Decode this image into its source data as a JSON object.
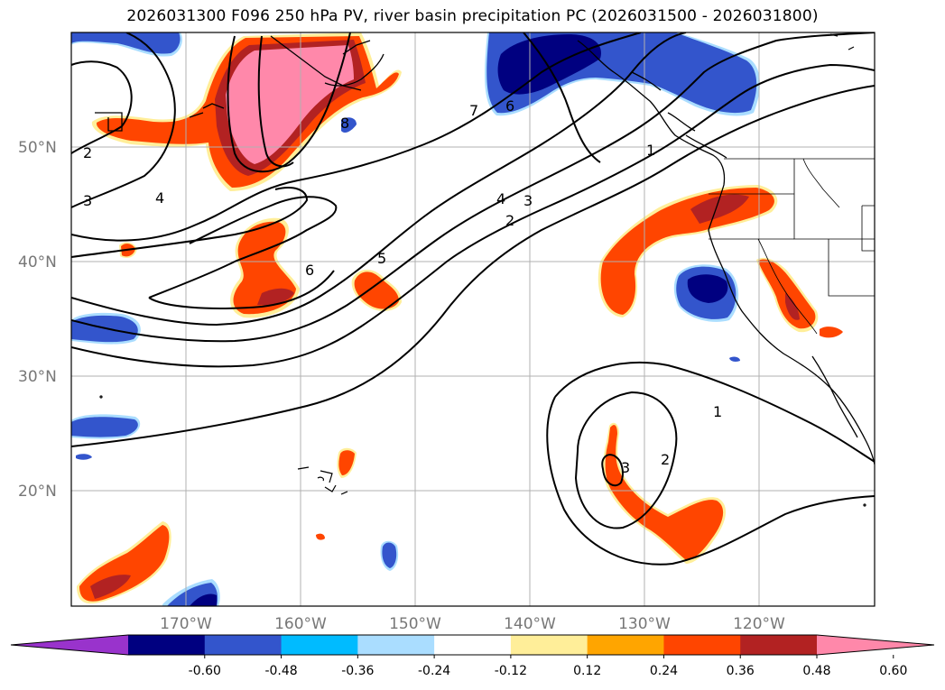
{
  "title": "2026031300 F096 250 hPa PV, river basin precipitation PC (2026031500 - 2026031800)",
  "lat_labels": [
    "50°N",
    "40°N",
    "30°N",
    "20°N"
  ],
  "lon_labels": [
    "170°W",
    "160°W",
    "150°W",
    "140°W",
    "130°W",
    "120°W"
  ],
  "pv_contour_labels": [
    "2",
    "3",
    "4",
    "8",
    "7",
    "6",
    "6",
    "5",
    "4",
    "3",
    "2",
    "1",
    "1",
    "2",
    "3"
  ],
  "colorbar": {
    "tick_labels": [
      "-0.60",
      "-0.48",
      "-0.36",
      "-0.24",
      "-0.12",
      "0.12",
      "0.24",
      "0.36",
      "0.48",
      "0.60"
    ],
    "colors": [
      "#9933cc",
      "#000080",
      "#3355cc",
      "#00bbff",
      "#aaddff",
      "#ffffff",
      "#ffee99",
      "#ffa500",
      "#ff4500",
      "#b22222",
      "#ff88aa"
    ]
  },
  "legend_colors": {
    "pink": "#ff88aa",
    "darkred": "#b22222",
    "orangered": "#ff4500",
    "orange": "#ffa500",
    "yellow": "#ffee99",
    "lightblue": "#aaddff",
    "cyan": "#00bbff",
    "blue": "#3355cc",
    "navy": "#000080"
  }
}
